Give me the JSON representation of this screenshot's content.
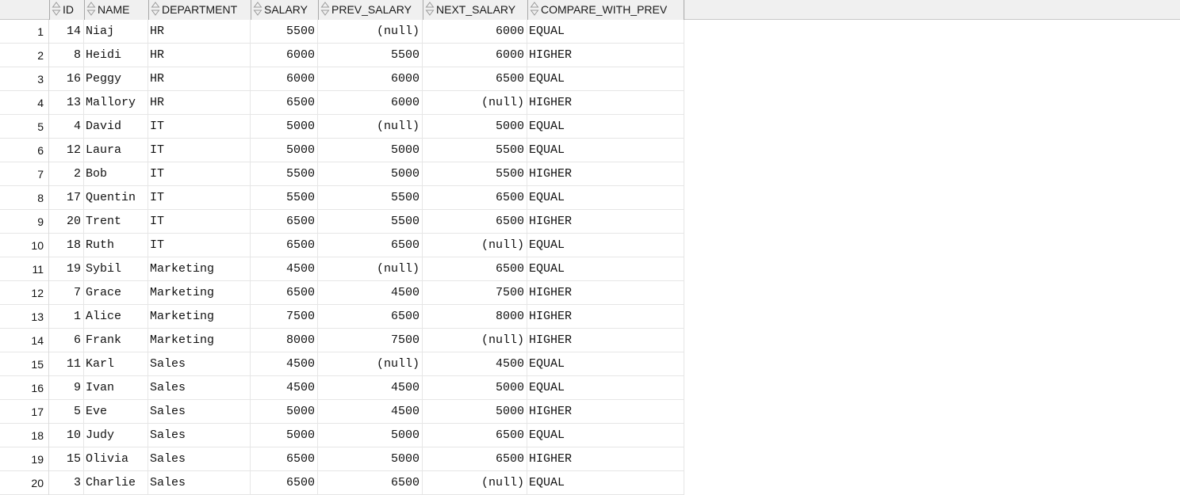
{
  "grid": {
    "columns": [
      {
        "key": "rownum",
        "label": ""
      },
      {
        "key": "id",
        "label": "ID"
      },
      {
        "key": "name",
        "label": "NAME"
      },
      {
        "key": "department",
        "label": "DEPARTMENT"
      },
      {
        "key": "salary",
        "label": "SALARY"
      },
      {
        "key": "prev_salary",
        "label": "PREV_SALARY"
      },
      {
        "key": "next_salary",
        "label": "NEXT_SALARY"
      },
      {
        "key": "compare_with_prev",
        "label": "COMPARE_WITH_PREV"
      }
    ],
    "rows": [
      [
        "1",
        "14",
        "Niaj",
        "HR",
        "5500",
        "(null)",
        "6000",
        "EQUAL"
      ],
      [
        "2",
        "8",
        "Heidi",
        "HR",
        "6000",
        "5500",
        "6000",
        "HIGHER"
      ],
      [
        "3",
        "16",
        "Peggy",
        "HR",
        "6000",
        "6000",
        "6500",
        "EQUAL"
      ],
      [
        "4",
        "13",
        "Mallory",
        "HR",
        "6500",
        "6000",
        "(null)",
        "HIGHER"
      ],
      [
        "5",
        "4",
        "David",
        "IT",
        "5000",
        "(null)",
        "5000",
        "EQUAL"
      ],
      [
        "6",
        "12",
        "Laura",
        "IT",
        "5000",
        "5000",
        "5500",
        "EQUAL"
      ],
      [
        "7",
        "2",
        "Bob",
        "IT",
        "5500",
        "5000",
        "5500",
        "HIGHER"
      ],
      [
        "8",
        "17",
        "Quentin",
        "IT",
        "5500",
        "5500",
        "6500",
        "EQUAL"
      ],
      [
        "9",
        "20",
        "Trent",
        "IT",
        "6500",
        "5500",
        "6500",
        "HIGHER"
      ],
      [
        "10",
        "18",
        "Ruth",
        "IT",
        "6500",
        "6500",
        "(null)",
        "EQUAL"
      ],
      [
        "11",
        "19",
        "Sybil",
        "Marketing",
        "4500",
        "(null)",
        "6500",
        "EQUAL"
      ],
      [
        "12",
        "7",
        "Grace",
        "Marketing",
        "6500",
        "4500",
        "7500",
        "HIGHER"
      ],
      [
        "13",
        "1",
        "Alice",
        "Marketing",
        "7500",
        "6500",
        "8000",
        "HIGHER"
      ],
      [
        "14",
        "6",
        "Frank",
        "Marketing",
        "8000",
        "7500",
        "(null)",
        "HIGHER"
      ],
      [
        "15",
        "11",
        "Karl",
        "Sales",
        "4500",
        "(null)",
        "4500",
        "EQUAL"
      ],
      [
        "16",
        "9",
        "Ivan",
        "Sales",
        "4500",
        "4500",
        "5000",
        "EQUAL"
      ],
      [
        "17",
        "5",
        "Eve",
        "Sales",
        "5000",
        "4500",
        "5000",
        "HIGHER"
      ],
      [
        "18",
        "10",
        "Judy",
        "Sales",
        "5000",
        "5000",
        "6500",
        "EQUAL"
      ],
      [
        "19",
        "15",
        "Olivia",
        "Sales",
        "6500",
        "5000",
        "6500",
        "HIGHER"
      ],
      [
        "20",
        "3",
        "Charlie",
        "Sales",
        "6500",
        "6500",
        "(null)",
        "EQUAL"
      ]
    ],
    "sort_icon": "sort-updown-icon"
  }
}
